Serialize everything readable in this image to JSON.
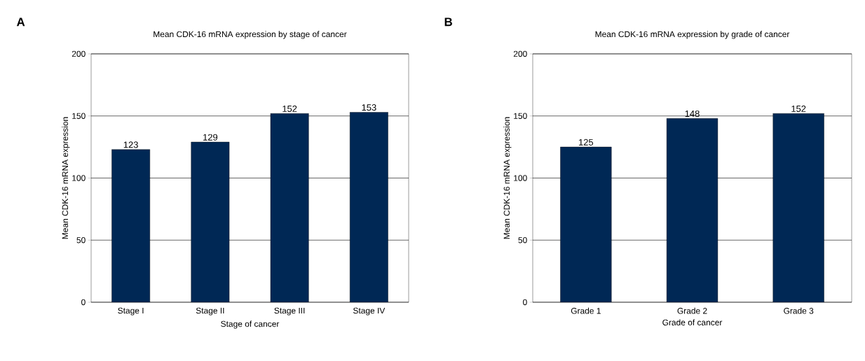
{
  "chart_data": [
    {
      "type": "bar",
      "title": "Mean CDK-16 mRNA expression by stage of cancer",
      "xlabel": "Stage of cancer",
      "ylabel": "Mean CDK-16 mRNA expression",
      "annotations": [
        "A"
      ],
      "categories": [
        "Stage I",
        "Stage II",
        "Stage III",
        "Stage IV"
      ],
      "values": [
        123,
        129,
        152,
        153
      ],
      "color": "#002855",
      "ylim": [
        0,
        200
      ],
      "yticks": [
        0,
        50,
        100,
        150,
        200
      ],
      "grid": "y",
      "data_labels": true
    },
    {
      "type": "bar",
      "title": "Mean CDK-16 mRNA expression by grade of cancer",
      "xlabel": "Grade of cancer",
      "ylabel": "Mean CDK-16 mRNA expression",
      "annotations": [
        "B"
      ],
      "categories": [
        "Grade 1",
        "Grade 2",
        "Grade 3"
      ],
      "values": [
        125,
        148,
        152
      ],
      "color": "#002855",
      "ylim": [
        0,
        200
      ],
      "yticks": [
        0,
        50,
        100,
        150,
        200
      ],
      "grid": "y",
      "data_labels": true
    }
  ]
}
